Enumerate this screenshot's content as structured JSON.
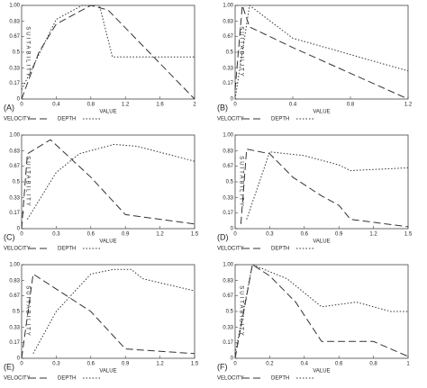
{
  "chart_data": [
    {
      "type": "line",
      "panel_label": "(A)",
      "x_label": "VALUE",
      "y_label": "SUITABILITY",
      "xlim": [
        0,
        2
      ],
      "xticks": [
        0,
        0.4,
        0.8,
        1.2,
        1.6,
        2
      ],
      "ylim": [
        0,
        1
      ],
      "yticks": [
        0,
        0.17,
        0.33,
        0.5,
        0.67,
        0.83,
        {
          "value": 1,
          "label": "1.00"
        }
      ],
      "series": [
        {
          "name": "VELOCITY",
          "color": "#333333",
          "dash": "8 4",
          "x": [
            0,
            0.2,
            0.4,
            0.8,
            1.0,
            2
          ],
          "values": [
            0,
            0.5,
            0.8,
            1,
            0.95,
            0
          ]
        },
        {
          "name": "DEPTH",
          "color": "#333333",
          "dash": "1.5 2",
          "x": [
            0,
            0.4,
            0.7,
            0.9,
            1.05,
            2
          ],
          "values": [
            0.1,
            0.85,
            1,
            1,
            0.45,
            0.45
          ]
        }
      ]
    },
    {
      "type": "line",
      "panel_label": "(B)",
      "x_label": "VALUE",
      "y_label": "SUITABILITY",
      "xlim": [
        0,
        1.2
      ],
      "xticks": [
        0,
        0.4,
        0.8,
        1.2
      ],
      "ylim": [
        0,
        1
      ],
      "yticks": [
        0,
        0.17,
        0.33,
        0.5,
        0.67,
        0.83,
        {
          "value": 1,
          "label": "1.00"
        }
      ],
      "series": [
        {
          "name": "VELOCITY",
          "color": "#333333",
          "dash": "8 4",
          "x": [
            0,
            0.05,
            0.1,
            0.4,
            1.2
          ],
          "values": [
            0.1,
            1,
            0.77,
            0.55,
            0
          ]
        },
        {
          "name": "DEPTH",
          "color": "#333333",
          "dash": "1.5 2",
          "x": [
            0,
            0.1,
            0.4,
            1.2
          ],
          "values": [
            0,
            1,
            0.65,
            0.3
          ]
        }
      ]
    },
    {
      "type": "line",
      "panel_label": "(C)",
      "x_label": "VALUE",
      "y_label": "SUITABILITY",
      "xlim": [
        0,
        1.5
      ],
      "xticks": [
        0,
        0.3,
        0.6,
        0.9,
        1.2,
        1.5
      ],
      "ylim": [
        0,
        1
      ],
      "yticks": [
        0,
        0.17,
        0.33,
        0.5,
        0.67,
        0.83,
        {
          "value": 1,
          "label": "1.00"
        }
      ],
      "series": [
        {
          "name": "VELOCITY",
          "color": "#333333",
          "dash": "8 4",
          "x": [
            0,
            0.05,
            0.25,
            0.6,
            0.9,
            1.5
          ],
          "values": [
            0,
            0.8,
            0.95,
            0.55,
            0.15,
            0.05
          ]
        },
        {
          "name": "DEPTH",
          "color": "#333333",
          "dash": "1.5 2",
          "x": [
            0.05,
            0.3,
            0.5,
            0.8,
            1.0,
            1.5
          ],
          "values": [
            0.1,
            0.6,
            0.8,
            0.9,
            0.88,
            0.72
          ]
        }
      ]
    },
    {
      "type": "line",
      "panel_label": "(D)",
      "x_label": "VALUE",
      "y_label": "SUITABILITY",
      "xlim": [
        0,
        1.5
      ],
      "xticks": [
        0,
        0.3,
        0.6,
        0.9,
        1.2,
        1.5
      ],
      "ylim": [
        0,
        1
      ],
      "yticks": [
        0,
        0.17,
        0.33,
        0.5,
        0.67,
        0.83,
        {
          "value": 1,
          "label": "1.00"
        }
      ],
      "series": [
        {
          "name": "VELOCITY",
          "color": "#333333",
          "dash": "8 4",
          "x": [
            0.05,
            0.1,
            0.3,
            0.5,
            0.75,
            0.9,
            1.0,
            1.5
          ],
          "values": [
            0.05,
            0.85,
            0.8,
            0.55,
            0.35,
            0.25,
            0.1,
            0.02
          ]
        },
        {
          "name": "DEPTH",
          "color": "#333333",
          "dash": "1.5 2",
          "x": [
            0.1,
            0.3,
            0.6,
            0.9,
            1.0,
            1.5
          ],
          "values": [
            0.1,
            0.82,
            0.78,
            0.68,
            0.62,
            0.65
          ]
        }
      ]
    },
    {
      "type": "line",
      "panel_label": "(E)",
      "x_label": "VALUE",
      "y_label": "SUITABILITY",
      "xlim": [
        0,
        1.5
      ],
      "xticks": [
        0,
        0.3,
        0.6,
        0.9,
        1.2,
        1.5
      ],
      "ylim": [
        0,
        1
      ],
      "yticks": [
        0,
        0.17,
        0.33,
        0.5,
        0.67,
        0.83,
        {
          "value": 1,
          "label": "1.00"
        }
      ],
      "series": [
        {
          "name": "VELOCITY",
          "color": "#333333",
          "dash": "8 4",
          "x": [
            0,
            0.1,
            0.6,
            0.9,
            1.5
          ],
          "values": [
            0,
            0.9,
            0.5,
            0.1,
            0.05
          ]
        },
        {
          "name": "DEPTH",
          "color": "#333333",
          "dash": "1.5 2",
          "x": [
            0.1,
            0.3,
            0.6,
            0.8,
            0.95,
            1.05,
            1.5
          ],
          "values": [
            0.05,
            0.5,
            0.9,
            0.95,
            0.95,
            0.85,
            0.72
          ]
        }
      ]
    },
    {
      "type": "line",
      "panel_label": "(F)",
      "x_label": "VALUE",
      "y_label": "SUITABILITY",
      "xlim": [
        0,
        1
      ],
      "xticks": [
        0,
        0.2,
        0.4,
        0.6,
        0.8,
        1
      ],
      "ylim": [
        0,
        1
      ],
      "yticks": [
        0,
        0.17,
        0.33,
        0.5,
        0.67,
        0.83,
        {
          "value": 1,
          "label": "1.00"
        }
      ],
      "series": [
        {
          "name": "VELOCITY",
          "color": "#333333",
          "dash": "8 4",
          "x": [
            0,
            0.1,
            0.2,
            0.35,
            0.5,
            0.8,
            1
          ],
          "values": [
            0,
            1,
            0.88,
            0.6,
            0.18,
            0.18,
            0.02
          ]
        },
        {
          "name": "DEPTH",
          "color": "#333333",
          "dash": "1.5 2",
          "x": [
            0,
            0.1,
            0.3,
            0.5,
            0.7,
            0.9,
            1
          ],
          "values": [
            0.05,
            1,
            0.85,
            0.55,
            0.6,
            0.5,
            0.5
          ]
        }
      ]
    }
  ]
}
